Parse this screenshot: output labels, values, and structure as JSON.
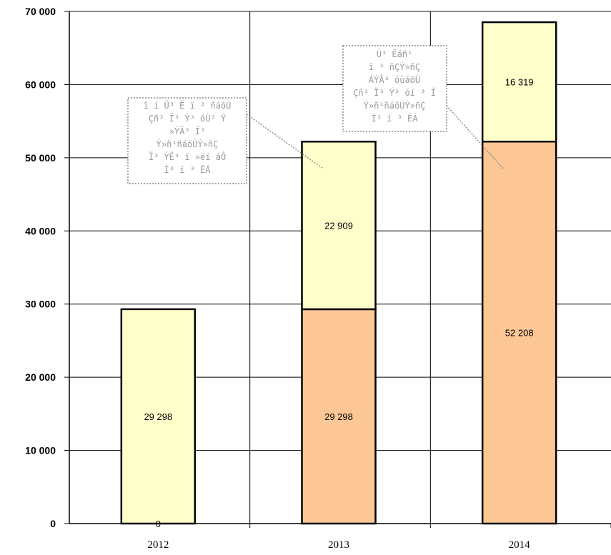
{
  "chart_data": {
    "type": "bar",
    "stacked": true,
    "categories": [
      "2012",
      "2013",
      "2014"
    ],
    "series": [
      {
        "values": [
          0,
          29298,
          52208
        ],
        "labels": [
          "0",
          "29 298",
          "52 208"
        ],
        "color": "#FCC794"
      },
      {
        "values": [
          29298,
          22909,
          16319
        ],
        "labels": [
          "29 298",
          "22 909",
          "16 319"
        ],
        "color": "#FFFFCC"
      }
    ],
    "ylim": [
      0,
      70000
    ],
    "yticks": [
      0,
      10000,
      20000,
      30000,
      40000,
      50000,
      60000,
      70000
    ],
    "ytick_labels": [
      "0",
      "10 000",
      "20 000",
      "30 000",
      "40 000",
      "50 000",
      "60 000",
      "70 000"
    ],
    "grid": true,
    "title": "",
    "xlabel": "",
    "ylabel": "",
    "annotations": [
      {
        "lines": [
          "î í Ü³ Ë ï ³ ñáõÙ",
          "Çñ³ Ï³ Ý³ óÙ³ Ý",
          "»ÝÃ³ Ï³",
          "Ý»ñ¹ñáõÙÝ»ñÇ",
          "Ï³ ÝË³ ï »ëí áÕ",
          "Í³ í ³ ÉÁ"
        ]
      },
      {
        "lines": [
          "Ù³ Ëáñ¹",
          "ï ³ ñÇÝ»ñÇ",
          "ÁÝÃ³ óùáõÙ",
          "Çñ³ Ï³ Ý³ óí ³ Í",
          "Ý»ñ¹ñáõÙÝ»ñÇ",
          "Í³ í ³ ÉÁ"
        ]
      }
    ]
  }
}
